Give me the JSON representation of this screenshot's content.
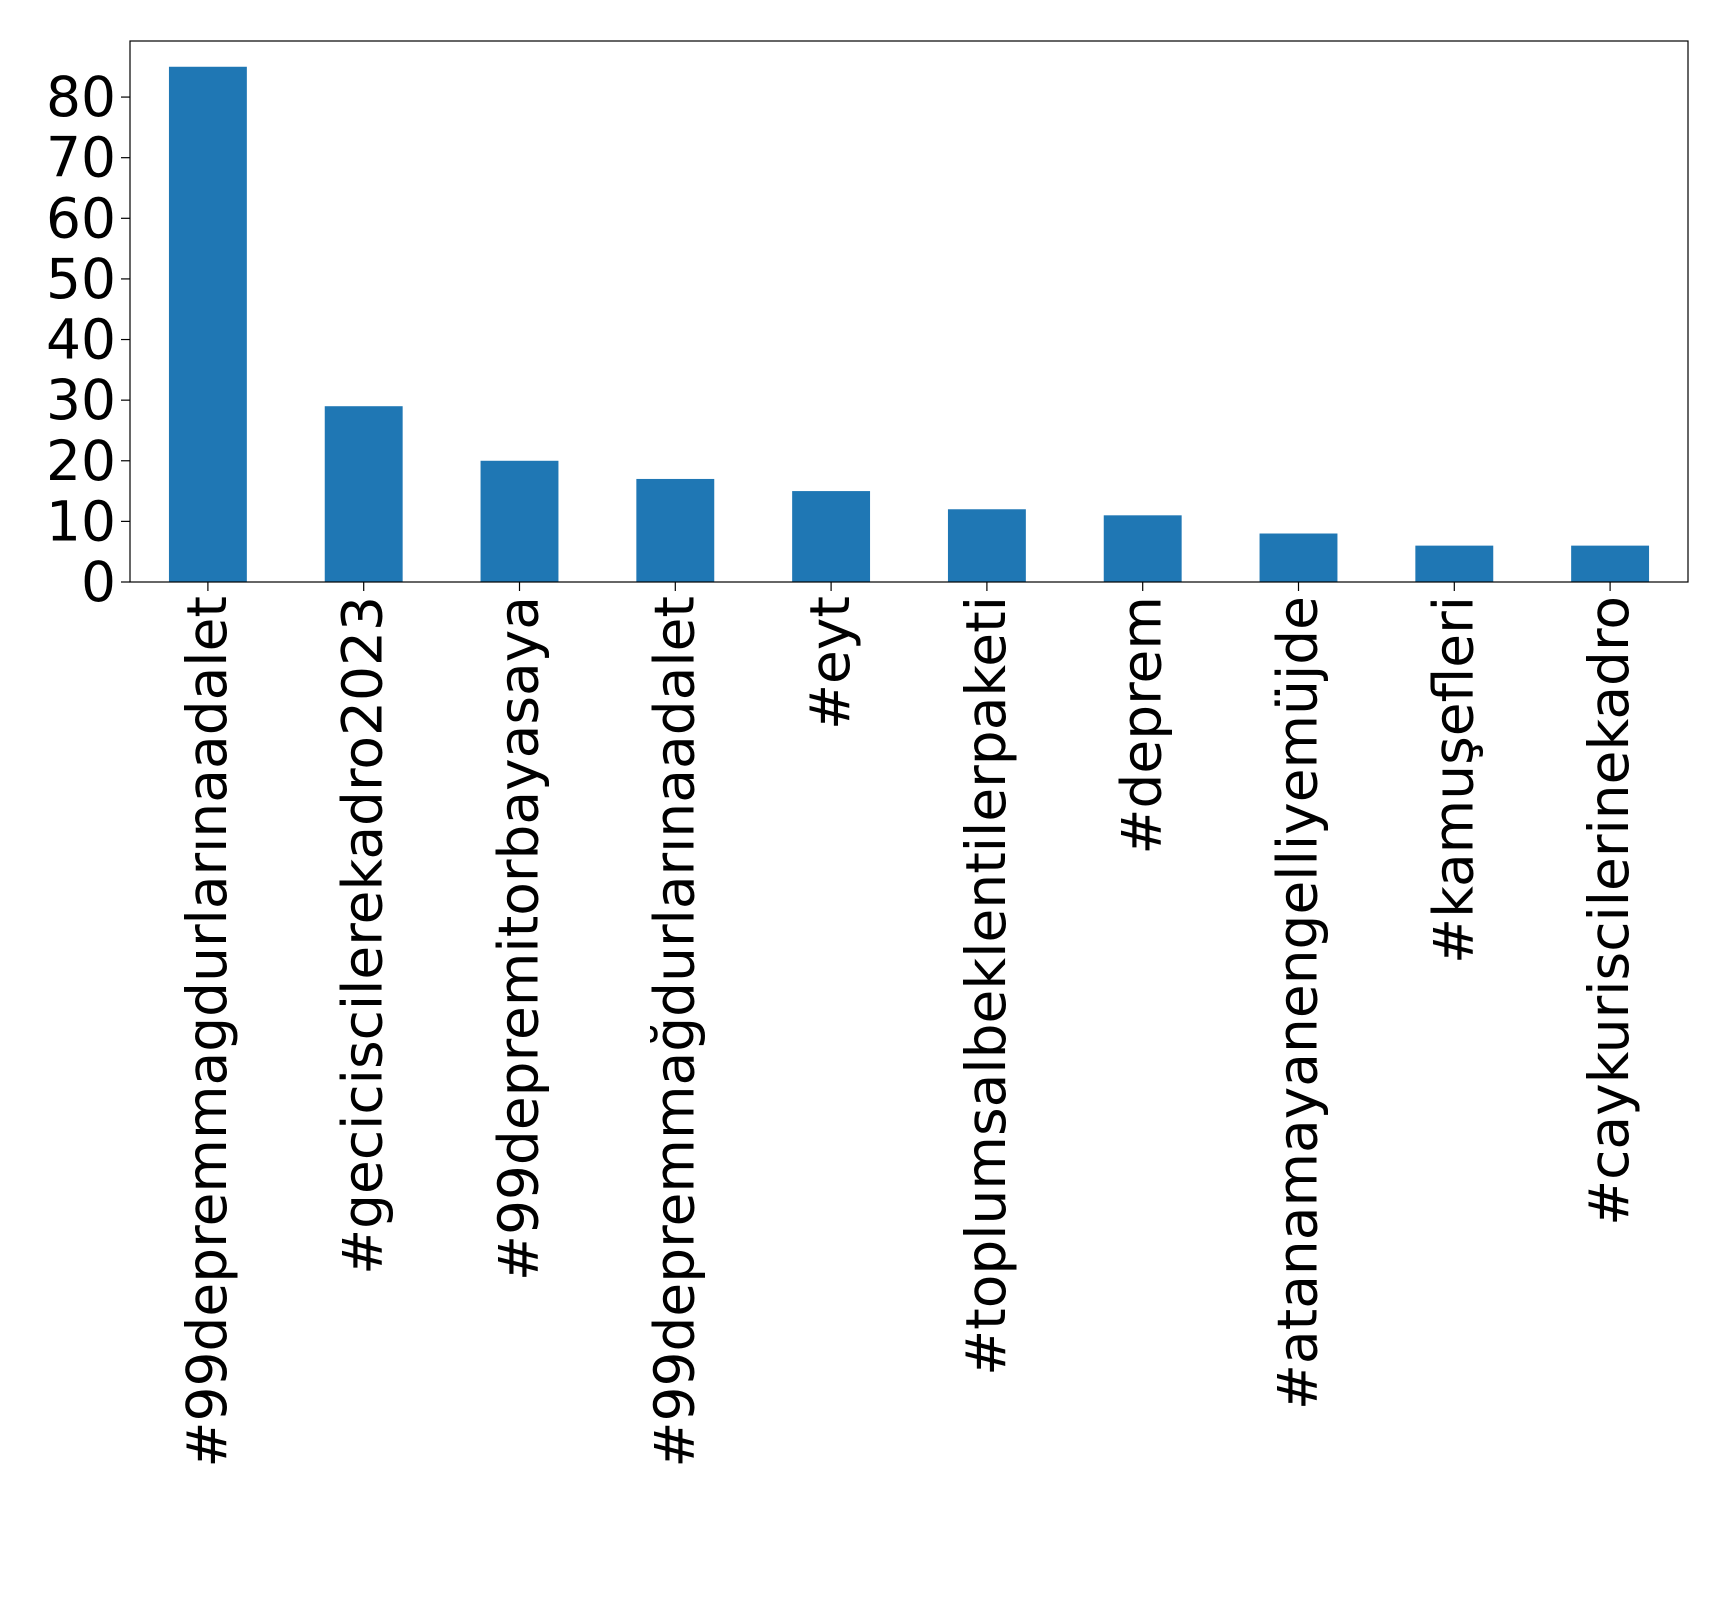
{
  "chart_data": {
    "type": "bar",
    "title": "",
    "xlabel": "",
    "ylabel": "",
    "categories": [
      "#99depremmagdurlarınaadalet",
      "#geciciscilerekadro2023",
      "#99depremitorbayasaya",
      "#99depremmağdurlarınaadalet",
      "#eyt",
      "#toplumsalbeklentilerpaketi",
      "#deprem",
      "#atanamayanengelliyemüjde",
      "#kamuşefleri",
      "#caykuriscilerinekadro"
    ],
    "values": [
      85,
      29,
      20,
      17,
      15,
      12,
      11,
      8,
      6,
      6
    ],
    "ylim": [
      0,
      89.25
    ],
    "yticks": [
      0,
      10,
      20,
      30,
      40,
      50,
      60,
      70,
      80
    ],
    "grid": false,
    "legend": "none",
    "bar_color": "#1f77b4",
    "axis_color": "#000000"
  }
}
